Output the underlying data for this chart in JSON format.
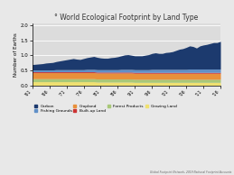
{
  "title": "° World Ecological Footprint by Land Type",
  "ylabel": "Number of Earths",
  "years": [
    1961,
    1962,
    1963,
    1964,
    1965,
    1966,
    1967,
    1968,
    1969,
    1970,
    1971,
    1972,
    1973,
    1974,
    1975,
    1976,
    1977,
    1978,
    1979,
    1980,
    1981,
    1982,
    1983,
    1984,
    1985,
    1986,
    1987,
    1988,
    1989,
    1990,
    1991,
    1992,
    1993,
    1994,
    1995,
    1996,
    1997,
    1998,
    1999,
    2000,
    2001,
    2002,
    2003,
    2004,
    2005,
    2006,
    2007,
    2008,
    2009,
    2010,
    2011,
    2012,
    2013,
    2014,
    2015,
    2016
  ],
  "grazing_land": [
    0.12,
    0.12,
    0.12,
    0.12,
    0.12,
    0.12,
    0.12,
    0.12,
    0.12,
    0.12,
    0.12,
    0.12,
    0.12,
    0.12,
    0.12,
    0.12,
    0.12,
    0.12,
    0.12,
    0.11,
    0.11,
    0.11,
    0.11,
    0.11,
    0.11,
    0.11,
    0.11,
    0.11,
    0.11,
    0.11,
    0.1,
    0.1,
    0.1,
    0.1,
    0.1,
    0.1,
    0.1,
    0.1,
    0.1,
    0.1,
    0.1,
    0.1,
    0.1,
    0.1,
    0.1,
    0.1,
    0.1,
    0.1,
    0.1,
    0.1,
    0.1,
    0.1,
    0.1,
    0.1,
    0.1,
    0.1
  ],
  "forest_products": [
    0.1,
    0.1,
    0.1,
    0.1,
    0.1,
    0.1,
    0.1,
    0.1,
    0.1,
    0.1,
    0.1,
    0.1,
    0.1,
    0.1,
    0.1,
    0.1,
    0.1,
    0.1,
    0.1,
    0.1,
    0.1,
    0.1,
    0.1,
    0.1,
    0.1,
    0.1,
    0.1,
    0.1,
    0.1,
    0.1,
    0.1,
    0.1,
    0.1,
    0.1,
    0.1,
    0.1,
    0.1,
    0.1,
    0.1,
    0.1,
    0.1,
    0.1,
    0.1,
    0.1,
    0.1,
    0.1,
    0.1,
    0.1,
    0.1,
    0.1,
    0.1,
    0.1,
    0.1,
    0.1,
    0.1,
    0.1
  ],
  "built_up_land": [
    0.03,
    0.03,
    0.03,
    0.03,
    0.03,
    0.03,
    0.03,
    0.03,
    0.03,
    0.03,
    0.03,
    0.03,
    0.03,
    0.03,
    0.03,
    0.03,
    0.03,
    0.03,
    0.03,
    0.03,
    0.03,
    0.03,
    0.03,
    0.03,
    0.03,
    0.03,
    0.03,
    0.03,
    0.03,
    0.03,
    0.03,
    0.03,
    0.03,
    0.03,
    0.03,
    0.03,
    0.03,
    0.03,
    0.03,
    0.03,
    0.03,
    0.03,
    0.03,
    0.03,
    0.03,
    0.03,
    0.03,
    0.03,
    0.03,
    0.03,
    0.03,
    0.03,
    0.03,
    0.03,
    0.03,
    0.03
  ],
  "cropland": [
    0.2,
    0.2,
    0.2,
    0.2,
    0.2,
    0.2,
    0.2,
    0.2,
    0.2,
    0.2,
    0.2,
    0.2,
    0.2,
    0.2,
    0.2,
    0.2,
    0.2,
    0.2,
    0.2,
    0.2,
    0.2,
    0.2,
    0.2,
    0.2,
    0.2,
    0.2,
    0.2,
    0.2,
    0.2,
    0.2,
    0.2,
    0.2,
    0.2,
    0.2,
    0.2,
    0.2,
    0.2,
    0.2,
    0.2,
    0.2,
    0.2,
    0.2,
    0.2,
    0.2,
    0.2,
    0.2,
    0.2,
    0.2,
    0.2,
    0.2,
    0.2,
    0.2,
    0.2,
    0.2,
    0.2,
    0.2
  ],
  "fishing_grounds": [
    0.06,
    0.06,
    0.06,
    0.06,
    0.06,
    0.06,
    0.06,
    0.07,
    0.07,
    0.07,
    0.07,
    0.07,
    0.07,
    0.07,
    0.07,
    0.07,
    0.08,
    0.08,
    0.08,
    0.08,
    0.08,
    0.08,
    0.08,
    0.08,
    0.08,
    0.08,
    0.09,
    0.09,
    0.09,
    0.09,
    0.09,
    0.09,
    0.09,
    0.09,
    0.09,
    0.1,
    0.1,
    0.1,
    0.1,
    0.1,
    0.1,
    0.1,
    0.1,
    0.1,
    0.1,
    0.1,
    0.11,
    0.11,
    0.11,
    0.11,
    0.11,
    0.11,
    0.11,
    0.11,
    0.11,
    0.11
  ],
  "carbon": [
    0.18,
    0.19,
    0.2,
    0.21,
    0.23,
    0.24,
    0.25,
    0.27,
    0.29,
    0.31,
    0.33,
    0.35,
    0.37,
    0.35,
    0.34,
    0.37,
    0.39,
    0.41,
    0.43,
    0.41,
    0.39,
    0.38,
    0.38,
    0.4,
    0.41,
    0.43,
    0.45,
    0.48,
    0.49,
    0.47,
    0.46,
    0.46,
    0.46,
    0.48,
    0.5,
    0.53,
    0.55,
    0.53,
    0.53,
    0.56,
    0.57,
    0.59,
    0.63,
    0.67,
    0.69,
    0.73,
    0.77,
    0.75,
    0.7,
    0.77,
    0.8,
    0.82,
    0.85,
    0.88,
    0.88,
    0.92
  ],
  "colors": {
    "grazing_land": "#f0e070",
    "forest_products": "#a8c878",
    "built_up_land": "#cc3333",
    "cropland": "#e8903a",
    "fishing_grounds": "#6090c8",
    "carbon": "#1c3a6e"
  },
  "legend_labels": [
    "Carbon",
    "Fishing Grounds",
    "Cropland",
    "Built-up Land",
    "Forest Products",
    "Grazing Land"
  ],
  "legend_colors": [
    "#1c3a6e",
    "#6090c8",
    "#e8903a",
    "#cc3333",
    "#a8c878",
    "#f0e070"
  ],
  "ylim": [
    0,
    2.05
  ],
  "yticks": [
    0,
    0.5,
    1.0,
    1.5,
    2.0
  ],
  "bg_color": "#e8e8e8",
  "plot_bg": "#dcdcdc",
  "footnote": "Global Footprint Network, 2019 National Footprint Accounts"
}
